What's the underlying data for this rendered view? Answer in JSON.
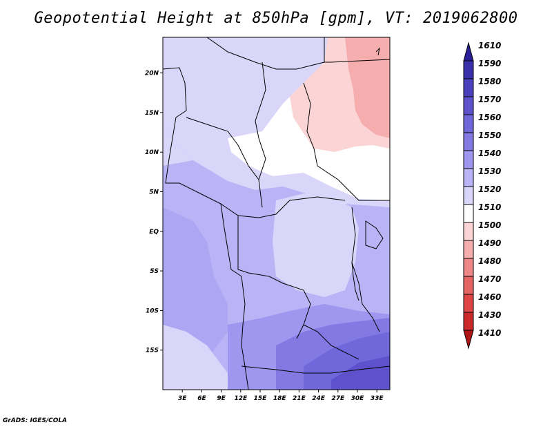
{
  "title": "Geopotential Height at 850hPa [gpm], VT: 2019062800",
  "footer": "GrADS: IGES/COLA",
  "map": {
    "lon_range": [
      0,
      35
    ],
    "lat_range": [
      -20,
      24.5
    ],
    "lon_ticks": [
      {
        "value": 3,
        "label": "3E"
      },
      {
        "value": 6,
        "label": "6E"
      },
      {
        "value": 9,
        "label": "9E"
      },
      {
        "value": 12,
        "label": "12E"
      },
      {
        "value": 15,
        "label": "15E"
      },
      {
        "value": 18,
        "label": "18E"
      },
      {
        "value": 21,
        "label": "21E"
      },
      {
        "value": 24,
        "label": "24E"
      },
      {
        "value": 27,
        "label": "27E"
      },
      {
        "value": 30,
        "label": "30E"
      },
      {
        "value": 33,
        "label": "33E"
      }
    ],
    "lat_ticks": [
      {
        "value": 20,
        "label": "20N"
      },
      {
        "value": 15,
        "label": "15N"
      },
      {
        "value": 10,
        "label": "10N"
      },
      {
        "value": 5,
        "label": "5N"
      },
      {
        "value": 0,
        "label": "EQ"
      },
      {
        "value": -5,
        "label": "5S"
      },
      {
        "value": -10,
        "label": "10S"
      },
      {
        "value": -15,
        "label": "15S"
      }
    ]
  },
  "colorbar": {
    "levels": [
      "1610",
      "1590",
      "1580",
      "1570",
      "1560",
      "1550",
      "1540",
      "1530",
      "1520",
      "1510",
      "1500",
      "1490",
      "1480",
      "1470",
      "1460",
      "1430",
      "1410"
    ],
    "colors": [
      "#2a1f99",
      "#3a2fab",
      "#4a3fbd",
      "#5d52cc",
      "#7067da",
      "#8379e3",
      "#9e96ef",
      "#bab3f6",
      "#d9d6fa",
      "#ffffff",
      "#fbd5d5",
      "#f5adad",
      "#ee8787",
      "#e66464",
      "#de4545",
      "#c92a2a",
      "#b01515"
    ]
  }
}
